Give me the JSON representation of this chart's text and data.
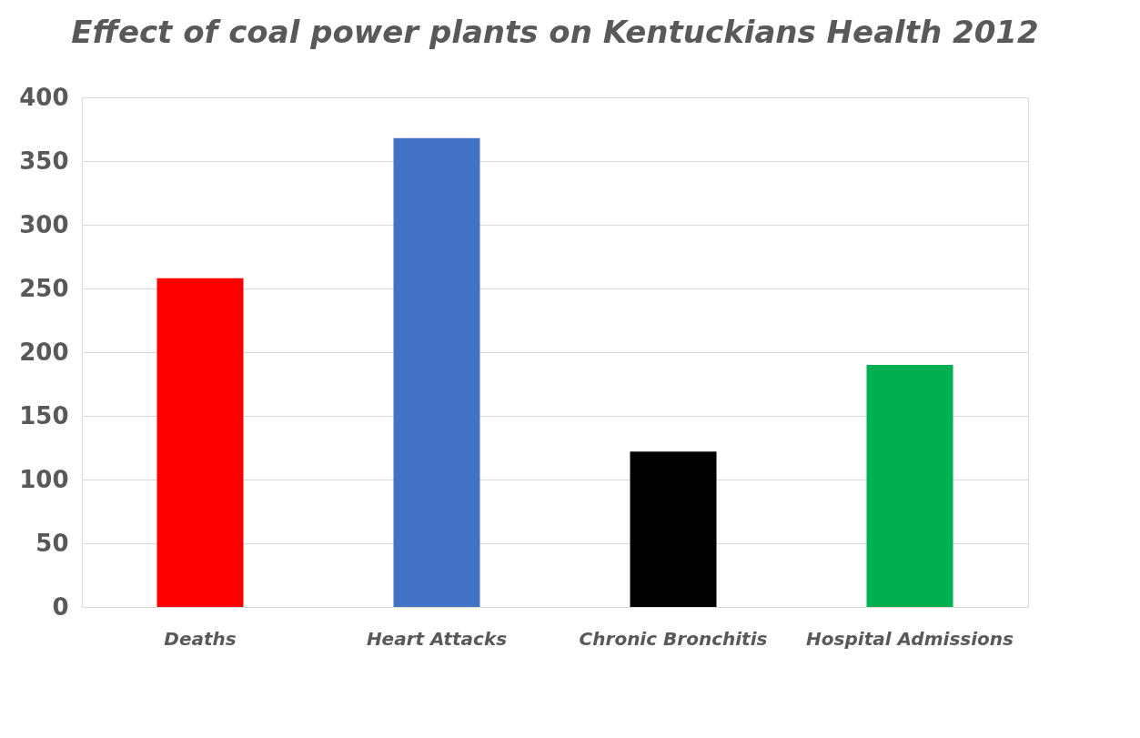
{
  "chart_data": {
    "type": "bar",
    "title": "Effect of coal power plants on Kentuckians Health 2012",
    "categories": [
      "Deaths",
      "Heart Attacks",
      "Chronic Bronchitis",
      "Hospital Admissions"
    ],
    "values": [
      258,
      368,
      122,
      190
    ],
    "colors": [
      "#ff0000",
      "#4472c4",
      "#000000",
      "#00b050"
    ],
    "ylim": [
      0,
      400
    ],
    "yticks": [
      0,
      50,
      100,
      150,
      200,
      250,
      300,
      350,
      400
    ],
    "grid": "y"
  }
}
